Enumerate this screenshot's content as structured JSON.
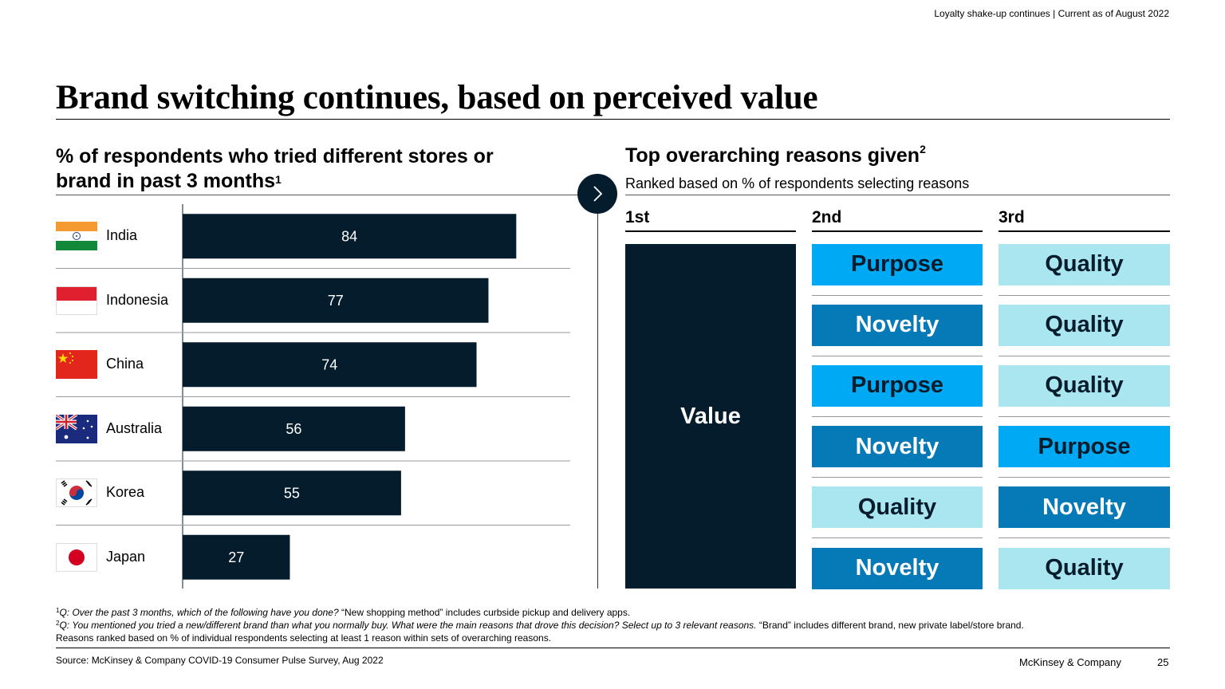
{
  "header": {
    "note": "Loyalty shake-up continues | Current as of August 2022"
  },
  "title": "Brand switching continues, based on perceived value",
  "left": {
    "heading": "% of respondents who tried different stores or brand in past 3 months",
    "heading_sup": "1"
  },
  "right": {
    "heading": "Top overarching reasons given",
    "heading_sup": "2",
    "subheading": "Ranked based on % of respondents selecting reasons",
    "rank_labels": [
      "1st",
      "2nd",
      "3rd"
    ],
    "first_reason": "Value",
    "rows": [
      {
        "second": "Purpose",
        "third": "Quality"
      },
      {
        "second": "Novelty",
        "third": "Quality"
      },
      {
        "second": "Purpose",
        "third": "Quality"
      },
      {
        "second": "Novelty",
        "third": "Purpose"
      },
      {
        "second": "Quality",
        "third": "Novelty"
      },
      {
        "second": "Novelty",
        "third": "Quality"
      }
    ]
  },
  "colors": {
    "navy": "#051c2c",
    "Purpose": "#00a9f4",
    "Novelty": "#0679b7",
    "Quality": "#aae6f0",
    "text_dark": "#051c2c",
    "text_light": "#ffffff"
  },
  "chart_data": {
    "type": "bar",
    "orientation": "horizontal",
    "title": "% of respondents who tried different stores or brand in past 3 months",
    "categories": [
      "India",
      "Indonesia",
      "China",
      "Australia",
      "Korea",
      "Japan"
    ],
    "values": [
      84,
      77,
      74,
      56,
      55,
      27
    ],
    "xlim": [
      0,
      100
    ],
    "bar_color": "#051c2c",
    "label_color": "#ffffff",
    "flag_icons": [
      "india-flag-icon",
      "indonesia-flag-icon",
      "china-flag-icon",
      "australia-flag-icon",
      "korea-flag-icon",
      "japan-flag-icon"
    ]
  },
  "footnotes": {
    "fn1_sup": "1",
    "fn1_italic": "Q: Over the past 3 months, which of the following have you done?",
    "fn1_rest": " “New shopping method” includes curbside pickup and delivery apps.",
    "fn2_sup": "2",
    "fn2_italic": "Q: You mentioned you tried a new/different brand than what you normally buy. What were the main reasons that drove this decision? Select up to 3 relevant reasons.",
    "fn2_rest": " “Brand” includes different brand, new private label/store brand.",
    "fn3": "Reasons ranked based on % of individual respondents selecting at least 1 reason within sets of overarching reasons."
  },
  "footer": {
    "source": "Source: McKinsey & Company COVID-19 Consumer Pulse Survey, Aug 2022",
    "brand": "McKinsey & Company",
    "page": "25"
  }
}
